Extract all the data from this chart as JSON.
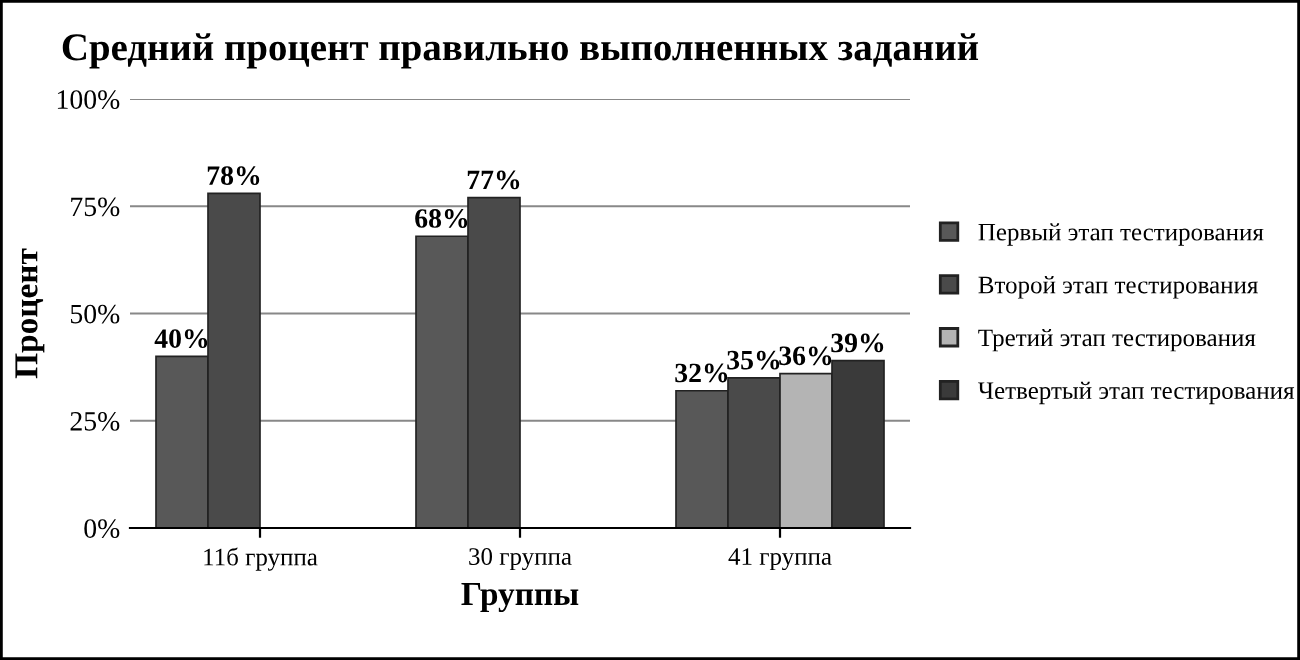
{
  "chart_data": {
    "type": "bar",
    "title": "Средний процент правильно выполненных заданий",
    "xlabel": "Группы",
    "ylabel": "Процент",
    "categories": [
      "11б группа",
      "30 группа",
      "41 группа"
    ],
    "series": [
      {
        "name": "Первый этап тестирования",
        "color": "#585858",
        "values": [
          40,
          68,
          32
        ],
        "value_labels": [
          "40%",
          "68%",
          "32%"
        ]
      },
      {
        "name": "Второй этап тестирования",
        "color": "#4a4a4a",
        "values": [
          78,
          77,
          35
        ],
        "value_labels": [
          "78%",
          "77%",
          "35%"
        ]
      },
      {
        "name": "Третий этап тестирования",
        "color": "#b4b4b4",
        "values": [
          null,
          null,
          36
        ],
        "value_labels": [
          null,
          null,
          "36%"
        ]
      },
      {
        "name": "Четвертый этап тестирования",
        "color": "#3a3a3a",
        "values": [
          null,
          null,
          39
        ],
        "value_labels": [
          null,
          null,
          "39%"
        ]
      }
    ],
    "ylim": [
      0,
      100
    ],
    "yticks": [
      {
        "value": 0,
        "label": "0%"
      },
      {
        "value": 25,
        "label": "25%"
      },
      {
        "value": 50,
        "label": "50%"
      },
      {
        "value": 75,
        "label": "75%"
      },
      {
        "value": 100,
        "label": "100%"
      }
    ],
    "grid": "y",
    "legend": "right"
  }
}
